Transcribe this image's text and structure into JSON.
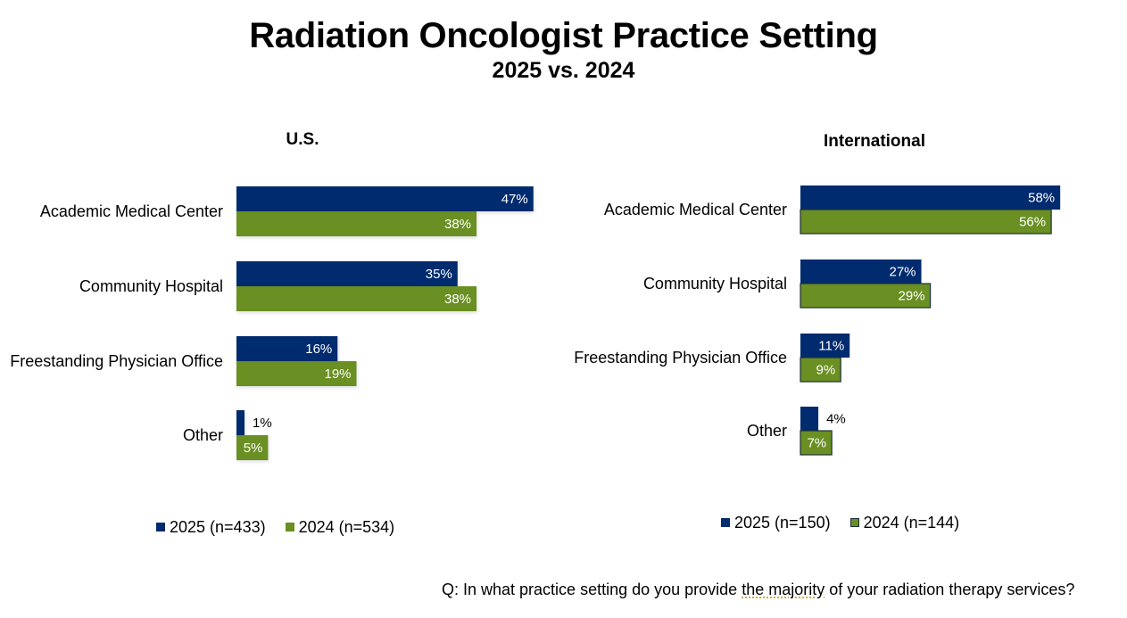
{
  "title": "Radiation Oncologist Practice Setting",
  "subtitle": "2025 vs. 2024",
  "colors": {
    "series_2025": "#002B6E",
    "series_2024": "#6A8F22",
    "intl_border": "#1E2F3A"
  },
  "chart_data": [
    {
      "type": "bar",
      "orientation": "horizontal",
      "title": "U.S.",
      "categories": [
        "Academic Medical Center",
        "Community Hospital",
        "Freestanding Physician Office",
        "Other"
      ],
      "series": [
        {
          "name": "2025 (n=433)",
          "values": [
            47,
            35,
            16,
            1
          ],
          "labels": [
            "47%",
            "35%",
            "16%",
            "1%"
          ]
        },
        {
          "name": "2024 (n=534)",
          "values": [
            38,
            38,
            19,
            5
          ],
          "labels": [
            "38%",
            "38%",
            "19%",
            "5%"
          ]
        }
      ],
      "unit": "%",
      "xlim": [
        0,
        60
      ],
      "grid": false,
      "legend": "bottom"
    },
    {
      "type": "bar",
      "orientation": "horizontal",
      "title": "International",
      "categories": [
        "Academic Medical Center",
        "Community Hospital",
        "Freestanding Physician Office",
        "Other"
      ],
      "series": [
        {
          "name": "2025 (n=150)",
          "values": [
            58,
            27,
            11,
            4
          ],
          "labels": [
            "58%",
            "27%",
            "11%",
            "4%"
          ]
        },
        {
          "name": "2024 (n=144)",
          "values": [
            56,
            29,
            9,
            7
          ],
          "labels": [
            "56%",
            "29%",
            "9%",
            "7%"
          ]
        }
      ],
      "unit": "%",
      "xlim": [
        0,
        60
      ],
      "grid": false,
      "legend": "bottom"
    }
  ],
  "footer": {
    "question_before": "Q: In what practice setting do you provide ",
    "question_flagged": "the majority",
    "question_after": " of your radiation therapy services?"
  }
}
